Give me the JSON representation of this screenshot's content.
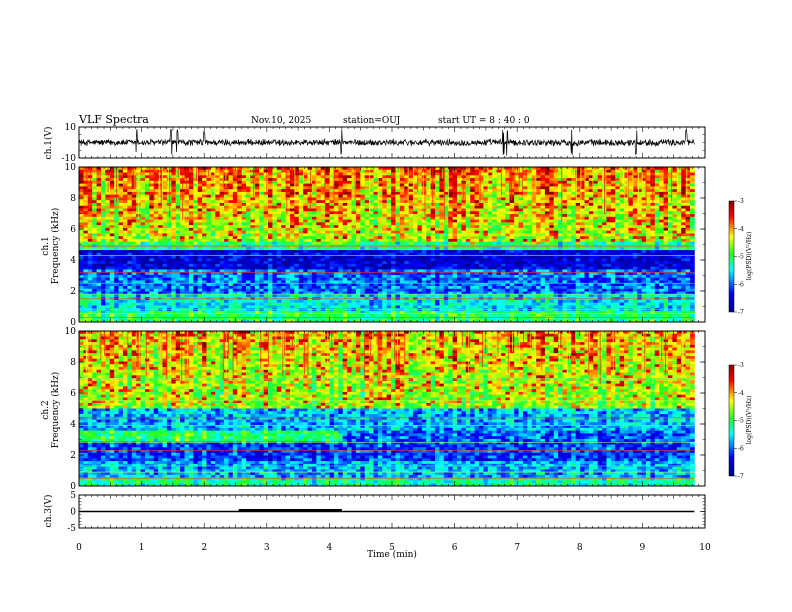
{
  "header": {
    "title": "VLF Spectra",
    "date": "Nov.10, 2025",
    "station": "station=OUJ",
    "start": "start  UT =   8 : 40 : 0"
  },
  "colors": {
    "cmap": [
      "#00008f",
      "#0000ff",
      "#00ffff",
      "#20ff20",
      "#ffff00",
      "#ff0000",
      "#8f0000"
    ],
    "trace": "#000000"
  },
  "chart_data": [
    {
      "id": "ch1-waveform",
      "type": "line",
      "ylabel": "ch.1(V)",
      "ylim": [
        -10,
        10
      ],
      "yticks": [
        10,
        -10
      ],
      "xlim": [
        0,
        10
      ],
      "description_values": {
        "baseline_V": 0.0,
        "noise_amplitude_V": 2.5,
        "spike_times_min": [
          0.92,
          1.47,
          1.57,
          2.0,
          4.19,
          6.78,
          6.84,
          7.87,
          8.9,
          9.7
        ]
      }
    },
    {
      "id": "ch1-spectrogram",
      "type": "heatmap",
      "ylabel": "ch.1",
      "ylabel2": "Frequency (kHz)",
      "ylim": [
        0,
        10
      ],
      "yticks": [
        0,
        2,
        4,
        6,
        8,
        10
      ],
      "xlim": [
        0,
        9.83
      ],
      "colorbar": {
        "label": "log(PSD)(V²/Hz)",
        "range": [
          -7,
          -3
        ],
        "ticks": [
          "-3",
          "-4",
          "-5",
          "-6",
          "-7"
        ]
      },
      "bands_kHz": {
        "low_noise_floor": [
          3.6,
          4.5
        ],
        "active_above": 5.0
      }
    },
    {
      "id": "ch2-spectrogram",
      "type": "heatmap",
      "ylabel": "ch.2",
      "ylabel2": "Frequency (kHz)",
      "ylim": [
        0,
        10
      ],
      "yticks": [
        0,
        2,
        4,
        6,
        8,
        10
      ],
      "xlim": [
        0,
        9.83
      ],
      "colorbar": {
        "label": "log(PSD)(V²/Hz)",
        "range": [
          -7,
          -3
        ],
        "ticks": [
          "-3",
          "-4",
          "-5",
          "-6",
          "-7"
        ]
      },
      "bands_kHz": {
        "band_3kHz_until_min": 4.2,
        "active_above": 4.5
      }
    },
    {
      "id": "ch3-level",
      "type": "line",
      "ylabel": "ch.3(V)",
      "ylim": [
        -5,
        5
      ],
      "yticks": [
        5,
        0,
        -5
      ],
      "xlim": [
        0,
        10
      ],
      "xlabel": "Time (min)",
      "xticks": [
        0,
        1,
        2,
        3,
        4,
        5,
        6,
        7,
        8,
        9,
        10
      ],
      "segments": [
        {
          "x0": 0.0,
          "x1": 9.83,
          "y": 0.0
        },
        {
          "x0": 2.55,
          "x1": 4.2,
          "y": 0.3
        }
      ]
    }
  ]
}
